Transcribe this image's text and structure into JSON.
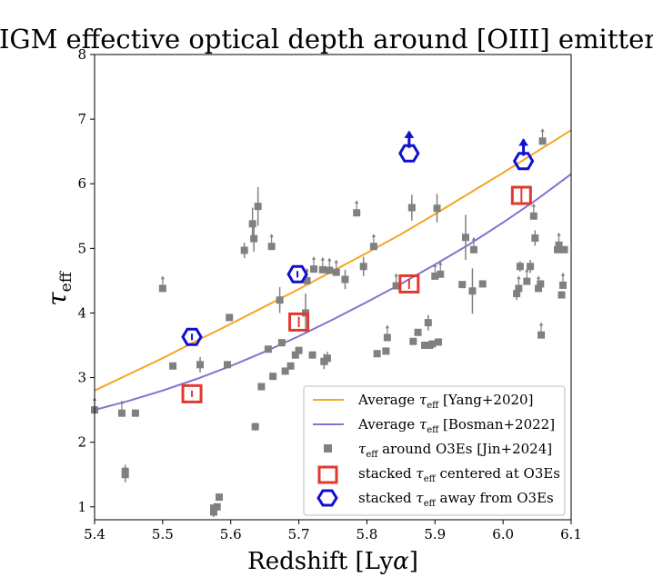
{
  "chart_data": {
    "type": "scatter",
    "title": "IGM effective optical depth around [OIII] emitters",
    "xlabel_main": "Redshift [Ly",
    "xlabel_greek": "α",
    "xlabel_close": "]",
    "ylabel_main": "τ",
    "ylabel_sub": "eff",
    "xlim": [
      5.4,
      6.1
    ],
    "ylim": [
      0.8,
      8.0
    ],
    "xticks": [
      "5.4",
      "5.5",
      "5.6",
      "5.7",
      "5.8",
      "5.9",
      "6.0",
      "6.1"
    ],
    "yticks": [
      "1",
      "2",
      "3",
      "4",
      "5",
      "6",
      "7",
      "8"
    ],
    "grid": false,
    "legend_position": "lower-right",
    "colors": {
      "yang": "#f5a623",
      "bosman": "#8a6fcf",
      "jin": "#808080",
      "centered": "#e03a2f",
      "away": "#1010d0"
    },
    "legend": {
      "yang_pre": "Average ",
      "yang_tau": "τ",
      "yang_sub": "eff",
      "yang_post": " [Yang+2020]",
      "bosman_pre": "Average ",
      "bosman_tau": "τ",
      "bosman_sub": "eff",
      "bosman_post": " [Bosman+2022]",
      "jin_tau": "τ",
      "jin_sub": "eff",
      "jin_post": " around O3Es [Jin+2024]",
      "centered_pre": "stacked ",
      "centered_tau": "τ",
      "centered_sub": "eff",
      "centered_post": " centered at O3Es",
      "away_pre": "stacked ",
      "away_tau": "τ",
      "away_sub": "eff",
      "away_post": " away from O3Es"
    },
    "series": [
      {
        "name": "Average τeff [Yang+2020]",
        "type": "line",
        "x": [
          5.4,
          5.45,
          5.5,
          5.55,
          5.6,
          5.65,
          5.7,
          5.75,
          5.8,
          5.85,
          5.9,
          5.95,
          6.0,
          6.05,
          6.1
        ],
        "y": [
          2.8,
          3.05,
          3.3,
          3.57,
          3.83,
          4.1,
          4.37,
          4.65,
          4.93,
          5.22,
          5.53,
          5.85,
          6.17,
          6.5,
          6.83
        ]
      },
      {
        "name": "Average τeff [Bosman+2022]",
        "type": "line",
        "x": [
          5.4,
          5.45,
          5.5,
          5.55,
          5.6,
          5.65,
          5.7,
          5.75,
          5.8,
          5.85,
          5.9,
          5.95,
          6.0,
          6.05,
          6.1
        ],
        "y": [
          2.5,
          2.64,
          2.8,
          2.98,
          3.18,
          3.4,
          3.64,
          3.9,
          4.17,
          4.45,
          4.75,
          5.06,
          5.4,
          5.76,
          6.15
        ]
      },
      {
        "name": "τeff around O3Es [Jin+2024]",
        "type": "scatter",
        "points": [
          {
            "x": 5.4,
            "y": 2.5,
            "lower": true
          },
          {
            "x": 5.44,
            "y": 2.45,
            "lower": true
          },
          {
            "x": 5.445,
            "y": 1.5,
            "err": 0.12
          },
          {
            "x": 5.445,
            "y": 1.55,
            "err": 0.1
          },
          {
            "x": 5.46,
            "y": 2.45,
            "err": 0.05
          },
          {
            "x": 5.5,
            "y": 4.38,
            "lower": true
          },
          {
            "x": 5.515,
            "y": 3.18
          },
          {
            "x": 5.555,
            "y": 3.2,
            "err": 0.12
          },
          {
            "x": 5.575,
            "y": 0.92,
            "err": 0.08
          },
          {
            "x": 5.575,
            "y": 0.98
          },
          {
            "x": 5.58,
            "y": 1.0
          },
          {
            "x": 5.583,
            "y": 1.15
          },
          {
            "x": 5.595,
            "y": 3.2
          },
          {
            "x": 5.598,
            "y": 3.93
          },
          {
            "x": 5.62,
            "y": 4.97,
            "err": 0.12
          },
          {
            "x": 5.632,
            "y": 5.38,
            "err": 0.25
          },
          {
            "x": 5.634,
            "y": 5.15,
            "err": 0.2
          },
          {
            "x": 5.636,
            "y": 2.24,
            "err": 0.06
          },
          {
            "x": 5.64,
            "y": 5.65,
            "err": 0.3
          },
          {
            "x": 5.645,
            "y": 2.86
          },
          {
            "x": 5.655,
            "y": 3.44
          },
          {
            "x": 5.66,
            "y": 5.03,
            "lower": true
          },
          {
            "x": 5.662,
            "y": 3.02
          },
          {
            "x": 5.672,
            "y": 4.2,
            "err": 0.2
          },
          {
            "x": 5.675,
            "y": 3.54
          },
          {
            "x": 5.68,
            "y": 3.1
          },
          {
            "x": 5.688,
            "y": 3.18
          },
          {
            "x": 5.695,
            "y": 3.35
          },
          {
            "x": 5.7,
            "y": 3.42
          },
          {
            "x": 5.71,
            "y": 4.0,
            "err": 0.3
          },
          {
            "x": 5.712,
            "y": 4.5,
            "lower": true
          },
          {
            "x": 5.72,
            "y": 3.35
          },
          {
            "x": 5.722,
            "y": 4.68,
            "lower": true
          },
          {
            "x": 5.735,
            "y": 4.67,
            "lower": true
          },
          {
            "x": 5.737,
            "y": 3.25,
            "err": 0.12
          },
          {
            "x": 5.742,
            "y": 3.3,
            "err": 0.1
          },
          {
            "x": 5.745,
            "y": 4.66,
            "lower": true
          },
          {
            "x": 5.755,
            "y": 4.63,
            "lower": true
          },
          {
            "x": 5.768,
            "y": 4.52,
            "err": 0.15
          },
          {
            "x": 5.785,
            "y": 5.55,
            "lower": true
          },
          {
            "x": 5.795,
            "y": 4.72,
            "err": 0.15
          },
          {
            "x": 5.81,
            "y": 5.03,
            "lower": true
          },
          {
            "x": 5.815,
            "y": 3.37
          },
          {
            "x": 5.828,
            "y": 3.41
          },
          {
            "x": 5.83,
            "y": 3.62,
            "lower": true
          },
          {
            "x": 5.843,
            "y": 4.42,
            "lower": true
          },
          {
            "x": 5.866,
            "y": 5.63,
            "err": 0.2
          },
          {
            "x": 5.868,
            "y": 3.56
          },
          {
            "x": 5.875,
            "y": 3.7
          },
          {
            "x": 5.885,
            "y": 3.5
          },
          {
            "x": 5.89,
            "y": 3.85,
            "err": 0.12
          },
          {
            "x": 5.892,
            "y": 3.5
          },
          {
            "x": 5.896,
            "y": 3.52
          },
          {
            "x": 5.9,
            "y": 4.57,
            "lower": true
          },
          {
            "x": 5.903,
            "y": 5.62,
            "err": 0.22
          },
          {
            "x": 5.905,
            "y": 3.55
          },
          {
            "x": 5.908,
            "y": 4.6,
            "lower": true
          },
          {
            "x": 5.94,
            "y": 4.44
          },
          {
            "x": 5.945,
            "y": 5.17,
            "err": 0.35
          },
          {
            "x": 5.955,
            "y": 4.34,
            "err": 0.35
          },
          {
            "x": 5.957,
            "y": 4.98,
            "lower": true
          },
          {
            "x": 5.97,
            "y": 4.45
          },
          {
            "x": 6.02,
            "y": 4.3,
            "err": 0.1
          },
          {
            "x": 6.023,
            "y": 4.38,
            "lower": true
          },
          {
            "x": 6.025,
            "y": 4.72,
            "err": 0.08
          },
          {
            "x": 6.035,
            "y": 4.49,
            "lower": true
          },
          {
            "x": 6.04,
            "y": 4.72,
            "err": 0.1
          },
          {
            "x": 6.045,
            "y": 5.5,
            "lower": true
          },
          {
            "x": 6.047,
            "y": 5.16,
            "err": 0.12
          },
          {
            "x": 6.052,
            "y": 4.38,
            "lower": true
          },
          {
            "x": 6.055,
            "y": 4.45
          },
          {
            "x": 6.056,
            "y": 3.66,
            "lower": true
          },
          {
            "x": 6.058,
            "y": 6.66,
            "lower": true
          },
          {
            "x": 6.08,
            "y": 4.98
          },
          {
            "x": 6.082,
            "y": 5.05,
            "lower": true
          },
          {
            "x": 6.086,
            "y": 4.28
          },
          {
            "x": 6.088,
            "y": 4.43,
            "lower": true
          },
          {
            "x": 6.09,
            "y": 4.98
          }
        ]
      },
      {
        "name": "stacked τeff centered at O3Es",
        "type": "scatter",
        "points": [
          {
            "x": 5.543,
            "y": 2.75,
            "err": 0.05
          },
          {
            "x": 5.7,
            "y": 3.86,
            "err": 0.08
          },
          {
            "x": 5.862,
            "y": 4.45,
            "err": 0.08
          },
          {
            "x": 6.027,
            "y": 5.82,
            "err": 0.12
          }
        ]
      },
      {
        "name": "stacked τeff away from O3Es",
        "type": "scatter",
        "points": [
          {
            "x": 5.543,
            "y": 3.63,
            "err": 0.05
          },
          {
            "x": 5.698,
            "y": 4.6,
            "err": 0.05
          },
          {
            "x": 5.862,
            "y": 6.47,
            "lower": true
          },
          {
            "x": 6.03,
            "y": 6.35,
            "lower": true
          }
        ]
      }
    ]
  }
}
